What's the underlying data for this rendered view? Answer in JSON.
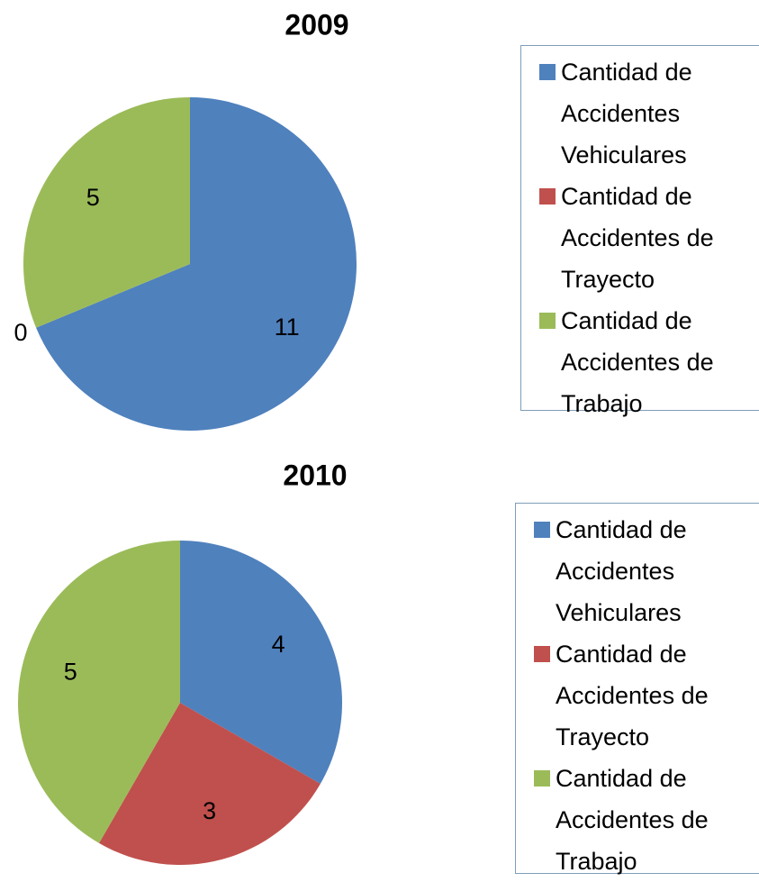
{
  "chart_data": [
    {
      "type": "pie",
      "title": "2009",
      "categories": [
        "Cantidad de Accidentes Vehiculares",
        "Cantidad de Accidentes de Trayecto",
        "Cantidad de Accidentes de Trabajo"
      ],
      "values": [
        11,
        0,
        5
      ],
      "colors": [
        "#4f81bd",
        "#c0504d",
        "#9bbb59"
      ]
    },
    {
      "type": "pie",
      "title": "2010",
      "categories": [
        "Cantidad de Accidentes Vehiculares",
        "Cantidad de Accidentes de Trayecto",
        "Cantidad de Accidentes de Trabajo"
      ],
      "values": [
        4,
        3,
        5
      ],
      "colors": [
        "#4f81bd",
        "#c0504d",
        "#9bbb59"
      ]
    }
  ]
}
